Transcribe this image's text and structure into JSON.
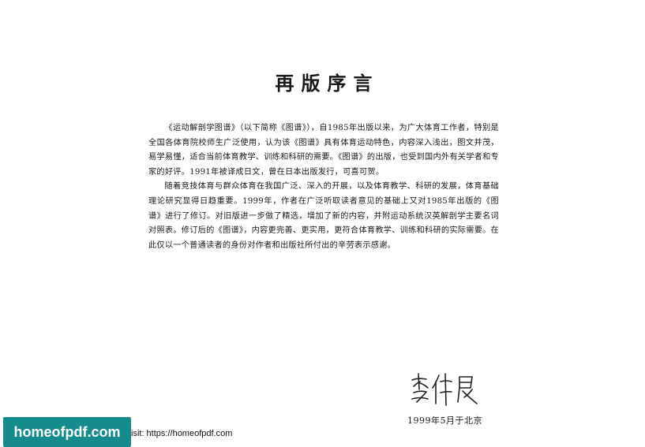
{
  "title": "再版序言",
  "paragraphs": [
    "《运动解剖学图谱》（以下简称《图谱》），自1985年出版以来，为广大体育工作者，特别是全国各体育院校师生广泛使用，认为该《图谱》具有体育运动特色，内容深入浅出，图文并茂，易学易懂，适合当前体育教学、训练和科研的需要。《图谱》的出版，也受到国内外有关学者和专家的好评。1991年被译成日文，曾在日本出版发行，可喜可贺。",
    "随着竞技体育与群众体育在我国广泛、深入的开展，以及体育教学、科研的发展，体育基础理论研究显得日趋重要。1999年，作者在广泛听取读者意见的基础上又对1985年出版的《图谱》进行了修订。对旧版进一步做了精选，增加了新的内容，并附运动系统汉英解剖学主要名词对照表。修订后的《图谱》，内容更完善、更实用，更符合体育教学、训练和科研的实际需要。在此仅以一个普通读者的身份对作者和出版社所付出的辛劳表示感谢。"
  ],
  "signature_text": "李仲良",
  "date_place": "1999年5月于北京",
  "watermark": {
    "badge_text": "homeofpdf.com",
    "visit_text": "isit: https://homeofpdf.com",
    "badge_color": "#168b8e"
  }
}
